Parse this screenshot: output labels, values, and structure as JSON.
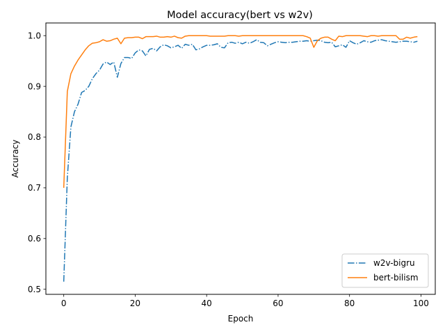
{
  "chart_data": {
    "type": "line",
    "title": "Model accuracy(bert vs w2v)",
    "xlabel": "Epoch",
    "ylabel": "Accuracy",
    "xlim": [
      -5,
      104
    ],
    "ylim": [
      0.49,
      1.025
    ],
    "xticks": [
      0,
      20,
      40,
      60,
      80,
      100
    ],
    "yticks": [
      0.5,
      0.6,
      0.7,
      0.8,
      0.9,
      1.0
    ],
    "ytick_labels": [
      "0.5",
      "0.6",
      "0.7",
      "0.8",
      "0.9",
      "1.0"
    ],
    "grid": false,
    "legend_position": "lower-right",
    "x": [
      0,
      1,
      2,
      3,
      4,
      5,
      6,
      7,
      8,
      9,
      10,
      11,
      12,
      13,
      14,
      15,
      16,
      17,
      18,
      19,
      20,
      21,
      22,
      23,
      24,
      25,
      26,
      27,
      28,
      29,
      30,
      31,
      32,
      33,
      34,
      35,
      36,
      37,
      38,
      39,
      40,
      41,
      42,
      43,
      44,
      45,
      46,
      47,
      48,
      49,
      50,
      51,
      52,
      53,
      54,
      55,
      56,
      57,
      58,
      59,
      60,
      61,
      62,
      63,
      64,
      65,
      66,
      67,
      68,
      69,
      70,
      71,
      72,
      73,
      74,
      75,
      76,
      77,
      78,
      79,
      80,
      81,
      82,
      83,
      84,
      85,
      86,
      87,
      88,
      89,
      90,
      91,
      92,
      93,
      94,
      95,
      96,
      97,
      98,
      99
    ],
    "series": [
      {
        "name": "w2v-bigru",
        "color": "#1f77b4",
        "style": "dashdot",
        "values": [
          0.515,
          0.72,
          0.82,
          0.85,
          0.865,
          0.888,
          0.892,
          0.9,
          0.915,
          0.925,
          0.932,
          0.944,
          0.948,
          0.943,
          0.948,
          0.918,
          0.945,
          0.957,
          0.957,
          0.955,
          0.966,
          0.972,
          0.97,
          0.96,
          0.973,
          0.975,
          0.97,
          0.978,
          0.982,
          0.98,
          0.976,
          0.978,
          0.981,
          0.975,
          0.983,
          0.981,
          0.983,
          0.972,
          0.974,
          0.978,
          0.981,
          0.981,
          0.982,
          0.984,
          0.977,
          0.976,
          0.986,
          0.987,
          0.985,
          0.987,
          0.984,
          0.987,
          0.985,
          0.988,
          0.992,
          0.987,
          0.986,
          0.98,
          0.983,
          0.986,
          0.988,
          0.987,
          0.986,
          0.987,
          0.987,
          0.988,
          0.989,
          0.989,
          0.99,
          0.989,
          0.99,
          0.991,
          0.99,
          0.987,
          0.986,
          0.987,
          0.978,
          0.98,
          0.982,
          0.977,
          0.99,
          0.986,
          0.983,
          0.986,
          0.99,
          0.988,
          0.987,
          0.99,
          0.991,
          0.992,
          0.99,
          0.989,
          0.988,
          0.987,
          0.988,
          0.989,
          0.989,
          0.988,
          0.987,
          0.989
        ]
      },
      {
        "name": "bert-bilism",
        "color": "#ff7f0e",
        "style": "solid",
        "values": [
          0.7,
          0.89,
          0.925,
          0.94,
          0.952,
          0.962,
          0.972,
          0.98,
          0.985,
          0.986,
          0.988,
          0.992,
          0.989,
          0.99,
          0.993,
          0.995,
          0.984,
          0.995,
          0.996,
          0.996,
          0.997,
          0.997,
          0.994,
          0.998,
          0.998,
          0.998,
          0.999,
          0.997,
          0.997,
          0.998,
          0.997,
          0.999,
          0.996,
          0.995,
          0.999,
          1.0,
          1.0,
          1.0,
          1.0,
          1.0,
          1.0,
          0.999,
          0.999,
          0.999,
          0.999,
          0.999,
          1.0,
          1.0,
          1.0,
          0.999,
          1.0,
          1.0,
          1.0,
          1.0,
          1.0,
          1.0,
          1.0,
          1.0,
          1.0,
          1.0,
          1.0,
          1.0,
          1.0,
          1.0,
          1.0,
          1.0,
          1.0,
          1.0,
          0.998,
          0.995,
          0.977,
          0.99,
          0.995,
          0.997,
          0.997,
          0.993,
          0.99,
          0.999,
          0.998,
          1.0,
          1.0,
          1.0,
          1.0,
          1.0,
          0.999,
          0.998,
          1.0,
          1.0,
          0.999,
          1.0,
          1.0,
          1.0,
          1.0,
          1.0,
          0.993,
          0.993,
          0.997,
          0.995,
          0.997,
          0.998
        ]
      }
    ]
  }
}
